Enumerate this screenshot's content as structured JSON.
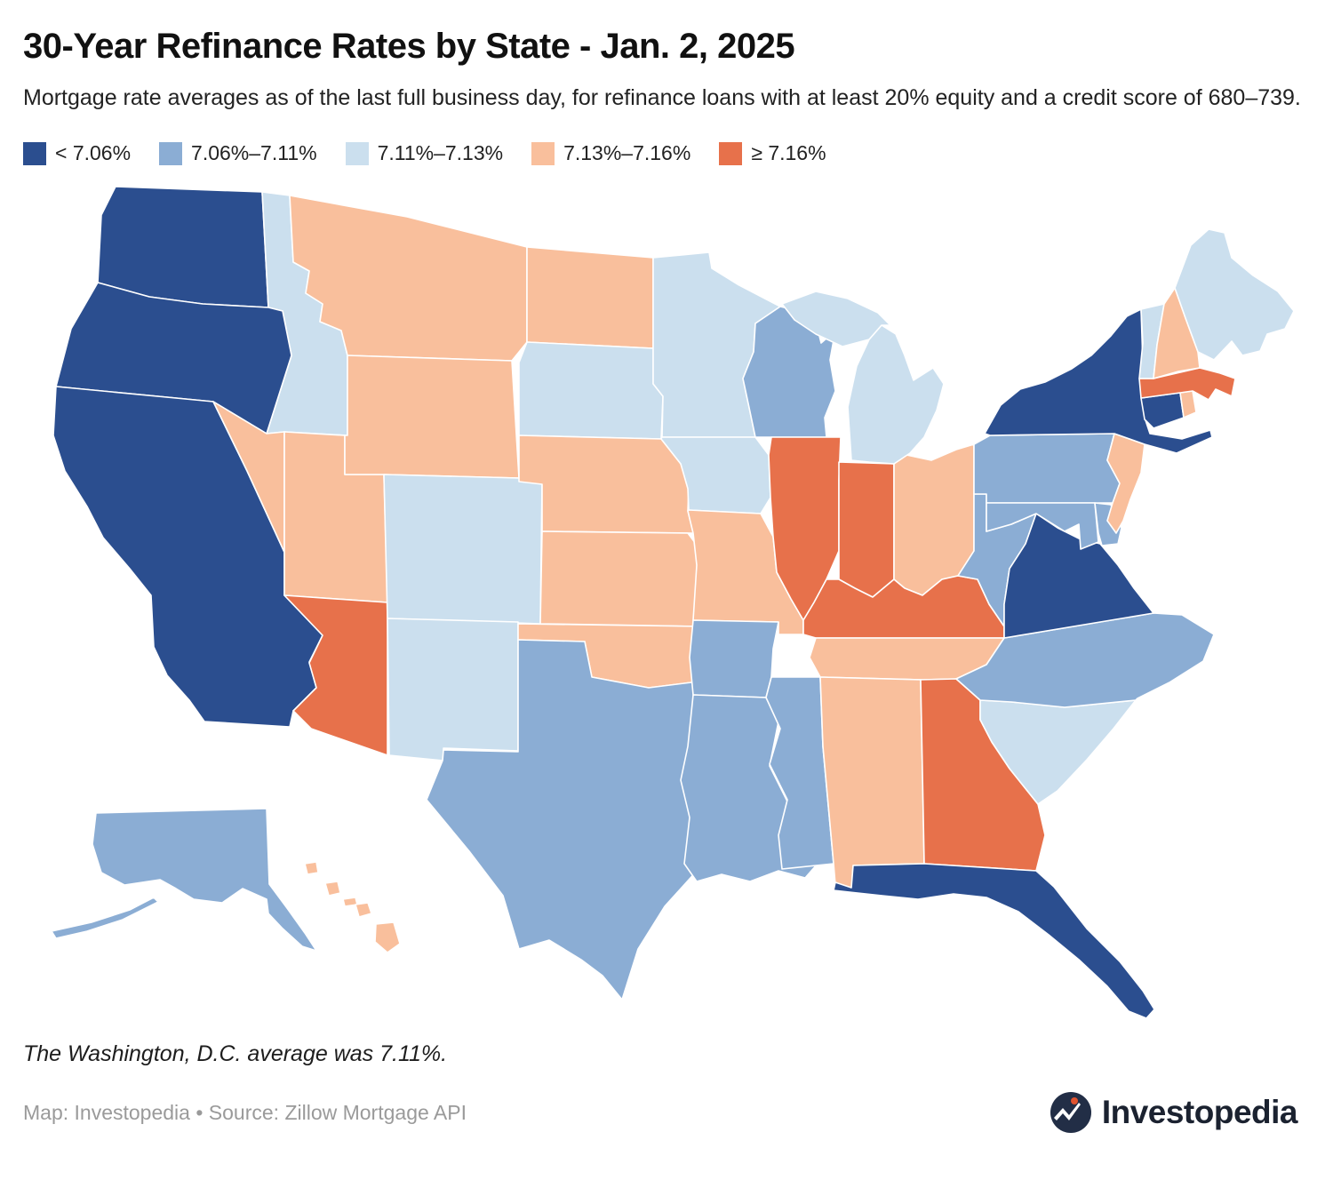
{
  "header": {
    "title": "30-Year Refinance Rates by State - Jan. 2, 2025",
    "subtitle": "Mortgage rate averages as of the last full business day, for refinance loans with at least 20% equity and a credit score of 680–739."
  },
  "chart_data": {
    "type": "choropleth-map",
    "title": "30-Year Refinance Rates by State - Jan. 2, 2025",
    "metric": "30-year refinance mortgage rate average",
    "date": "Jan. 2, 2025",
    "buckets": [
      {
        "id": "b0",
        "label": "< 7.06%",
        "color": "#2b4e8f"
      },
      {
        "id": "b1",
        "label": "7.06%–7.11%",
        "color": "#8badd4"
      },
      {
        "id": "b2",
        "label": "7.11%–7.13%",
        "color": "#cbdfee"
      },
      {
        "id": "b3",
        "label": "7.13%–7.16%",
        "color": "#f9bf9c"
      },
      {
        "id": "b4",
        "label": "≥ 7.16%",
        "color": "#e7714b"
      }
    ],
    "states": {
      "WA": "b0",
      "OR": "b0",
      "CA": "b0",
      "NY": "b0",
      "CT": "b0",
      "VA": "b0",
      "FL": "b0",
      "AK": "b1",
      "TX": "b1",
      "WI": "b1",
      "PA": "b1",
      "MD": "b1",
      "DE": "b1",
      "WV": "b1",
      "NC": "b1",
      "AR": "b1",
      "LA": "b1",
      "MS": "b1",
      "ID": "b2",
      "CO": "b2",
      "NM": "b2",
      "SD": "b2",
      "MN": "b2",
      "IA": "b2",
      "MI": "b2",
      "ME": "b2",
      "VT": "b2",
      "SC": "b2",
      "MT": "b3",
      "WY": "b3",
      "NV": "b3",
      "UT": "b3",
      "ND": "b3",
      "NE": "b3",
      "KS": "b3",
      "MO": "b3",
      "OK": "b3",
      "OH": "b3",
      "TN": "b3",
      "AL": "b3",
      "NH": "b3",
      "NJ": "b3",
      "RI": "b3",
      "HI": "b3",
      "AZ": "b4",
      "IL": "b4",
      "IN": "b4",
      "KY": "b4",
      "GA": "b4",
      "MA": "b4"
    },
    "dc_average": "7.11%"
  },
  "footer": {
    "note": "The Washington, D.C. average was 7.11%.",
    "credit": "Map: Investopedia • Source: Zillow Mortgage API"
  },
  "logo": {
    "text": "Investopedia"
  }
}
